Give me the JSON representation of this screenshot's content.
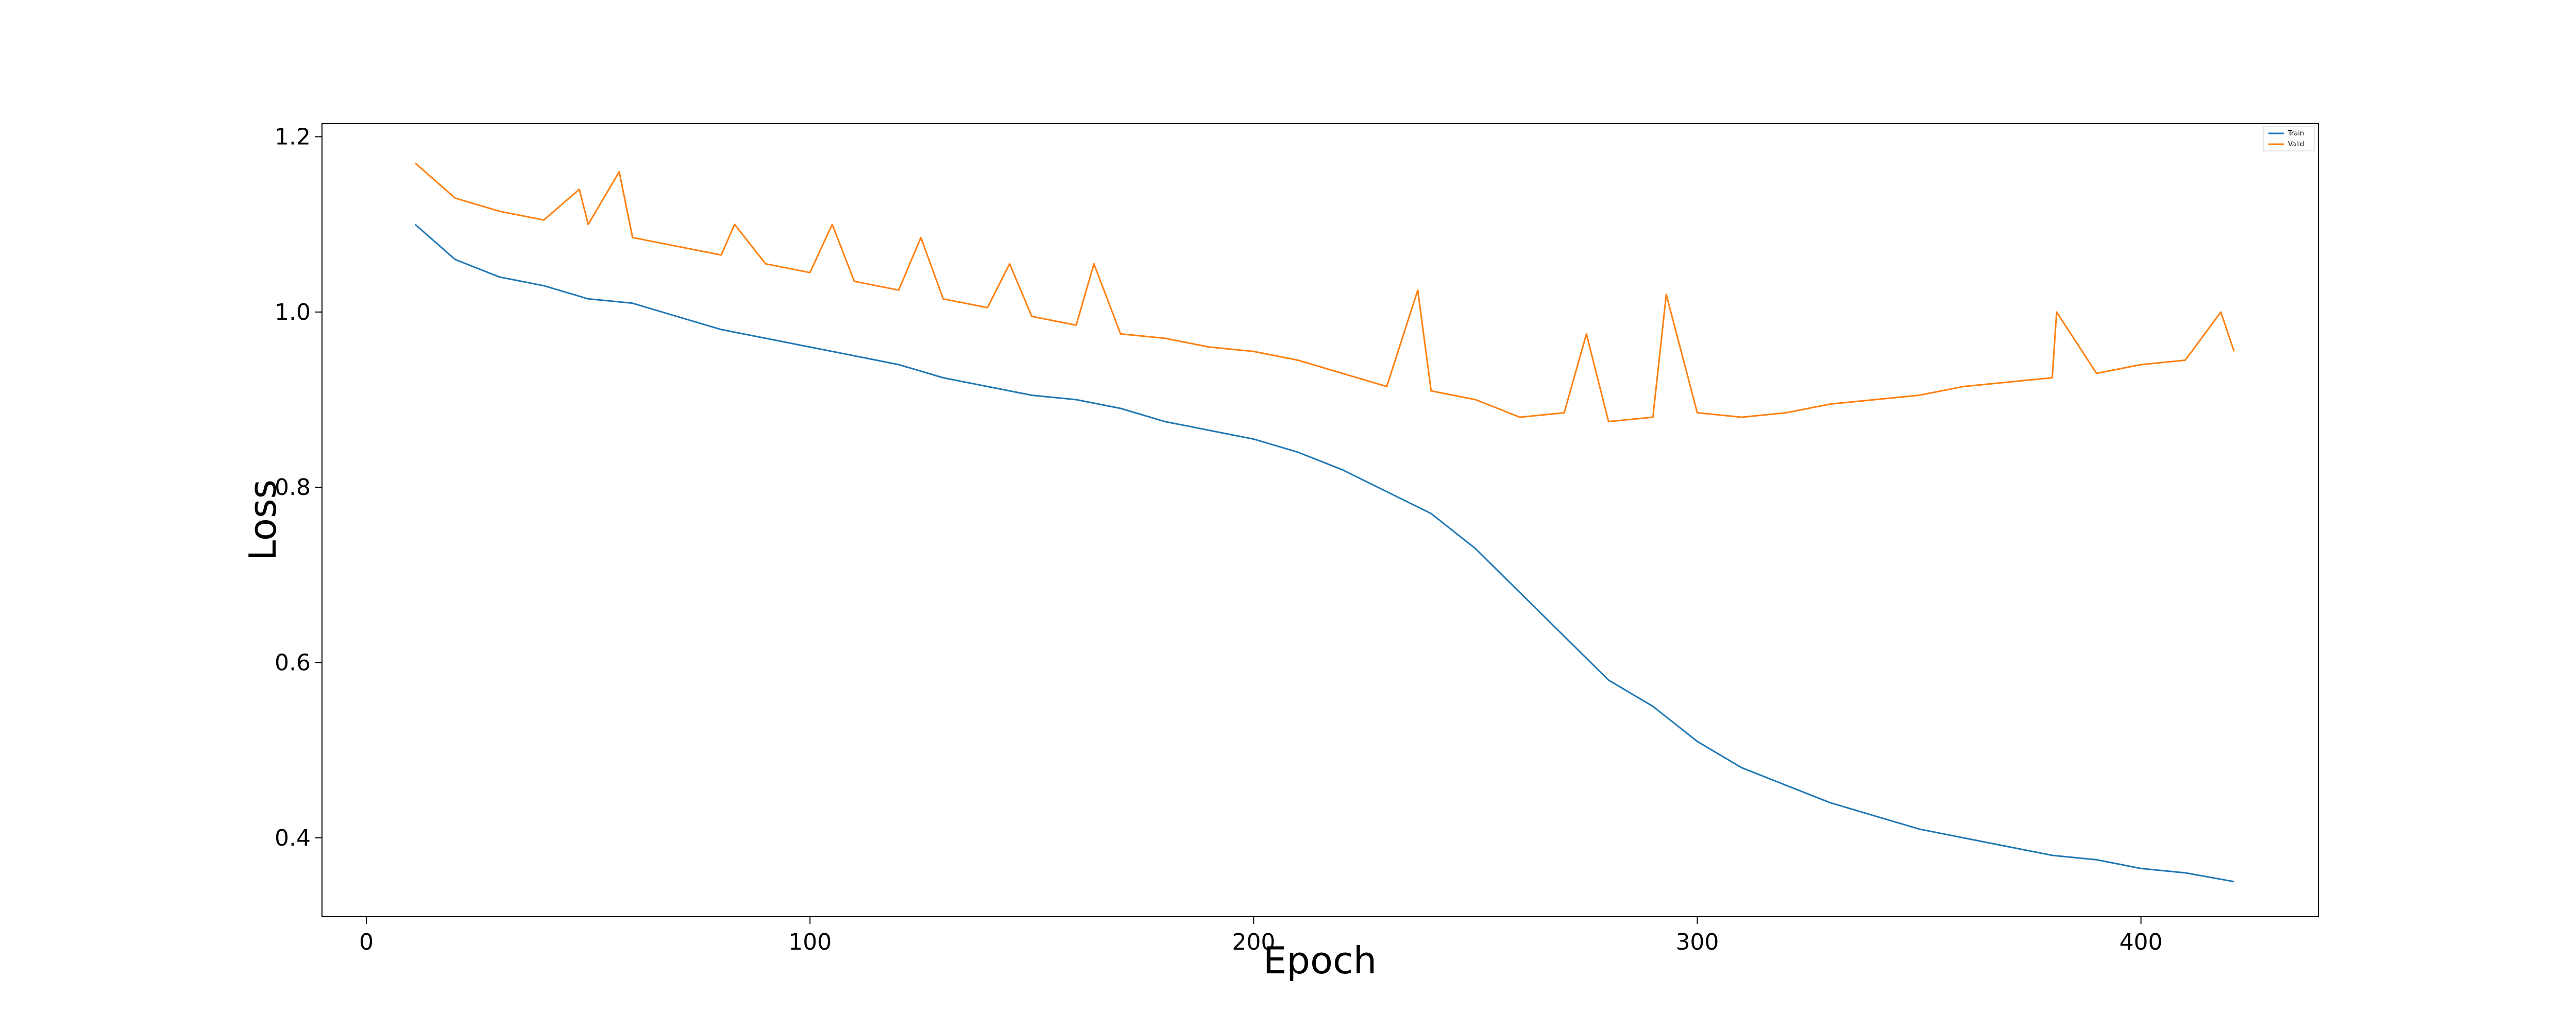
{
  "chart_data": {
    "type": "line",
    "title": "",
    "xlabel": "Epoch",
    "ylabel": "Loss",
    "xlim": [
      -10,
      440
    ],
    "ylim": [
      0.31,
      1.215
    ],
    "xticks": [
      0,
      100,
      200,
      300,
      400
    ],
    "yticks": [
      0.4,
      0.6,
      0.8,
      1.0,
      1.2
    ],
    "xtick_labels": [
      "0",
      "100",
      "200",
      "300",
      "400"
    ],
    "ytick_labels": [
      "0.4",
      "0.6",
      "0.8",
      "1.0",
      "1.2"
    ],
    "grid": false,
    "legend": {
      "position": "top-right",
      "entries": [
        "Train",
        "Valid"
      ]
    },
    "series": [
      {
        "name": "Train",
        "color": "#1f77b4",
        "x": [
          11,
          20,
          30,
          40,
          50,
          60,
          70,
          80,
          90,
          100,
          110,
          120,
          130,
          140,
          150,
          160,
          170,
          180,
          190,
          200,
          210,
          220,
          230,
          240,
          250,
          260,
          270,
          280,
          290,
          300,
          310,
          320,
          330,
          340,
          350,
          360,
          370,
          380,
          390,
          400,
          410,
          421
        ],
        "y": [
          1.1,
          1.06,
          1.04,
          1.03,
          1.015,
          1.01,
          0.995,
          0.98,
          0.97,
          0.96,
          0.95,
          0.94,
          0.925,
          0.915,
          0.905,
          0.9,
          0.89,
          0.875,
          0.865,
          0.855,
          0.84,
          0.82,
          0.795,
          0.77,
          0.73,
          0.68,
          0.63,
          0.58,
          0.55,
          0.51,
          0.48,
          0.46,
          0.44,
          0.425,
          0.41,
          0.4,
          0.39,
          0.38,
          0.375,
          0.365,
          0.36,
          0.35
        ]
      },
      {
        "name": "Valid",
        "color": "#ff7f0e",
        "x": [
          11,
          20,
          30,
          40,
          48,
          50,
          57,
          60,
          70,
          80,
          83,
          90,
          100,
          105,
          110,
          120,
          125,
          130,
          140,
          145,
          150,
          160,
          164,
          170,
          180,
          190,
          200,
          210,
          220,
          230,
          237,
          240,
          250,
          260,
          270,
          275,
          280,
          290,
          293,
          300,
          310,
          320,
          330,
          340,
          350,
          360,
          370,
          380,
          381,
          390,
          400,
          410,
          418,
          421
        ],
        "y": [
          1.17,
          1.13,
          1.115,
          1.105,
          1.14,
          1.1,
          1.16,
          1.085,
          1.075,
          1.065,
          1.1,
          1.055,
          1.045,
          1.1,
          1.035,
          1.025,
          1.085,
          1.015,
          1.005,
          1.055,
          0.995,
          0.985,
          1.055,
          0.975,
          0.97,
          0.96,
          0.955,
          0.945,
          0.93,
          0.915,
          1.025,
          0.91,
          0.9,
          0.88,
          0.885,
          0.975,
          0.875,
          0.88,
          1.02,
          0.885,
          0.88,
          0.885,
          0.895,
          0.9,
          0.905,
          0.915,
          0.92,
          0.925,
          1.0,
          0.93,
          0.94,
          0.945,
          1.0,
          0.955
        ]
      }
    ]
  }
}
